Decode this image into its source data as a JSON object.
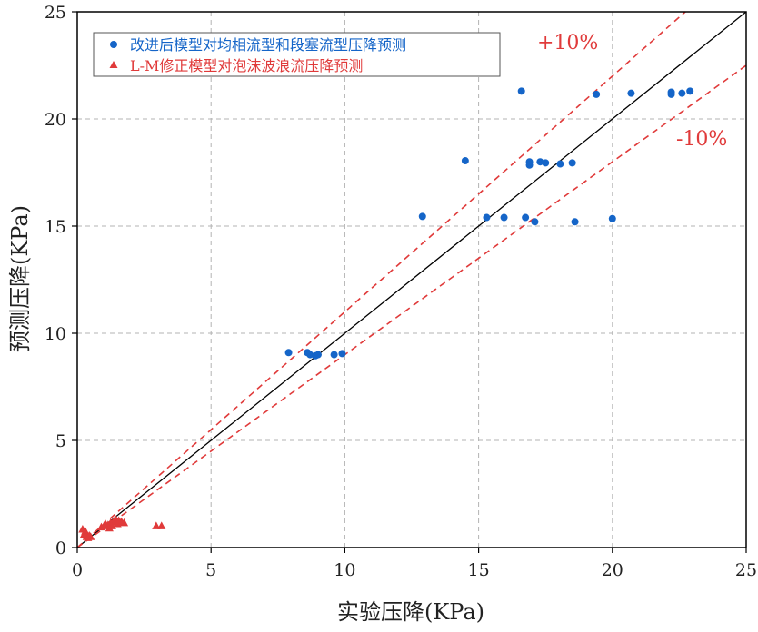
{
  "colors": {
    "blue": "#1565c8",
    "red": "#e03a3a",
    "axis": "#000000",
    "grid": "#b3b3b3"
  },
  "chart_data": {
    "type": "scatter",
    "title": "",
    "xlabel": "实验压降(KPa)",
    "ylabel": "预测压降(KPa)",
    "xlim": [
      0,
      25
    ],
    "ylim": [
      0,
      25
    ],
    "xticks": [
      "0",
      "5",
      "10",
      "15",
      "20",
      "25"
    ],
    "yticks": [
      "0",
      "5",
      "10",
      "15",
      "20",
      "25"
    ],
    "grid": true,
    "legend_position": "top-left",
    "series": [
      {
        "name": "改进后模型对均相流型和段塞流型压降预测",
        "marker": "circle",
        "color": "#1565c8",
        "points": [
          [
            7.9,
            9.1
          ],
          [
            8.6,
            9.1
          ],
          [
            8.7,
            9.0
          ],
          [
            8.9,
            8.95
          ],
          [
            9.0,
            9.0
          ],
          [
            9.6,
            9.0
          ],
          [
            9.9,
            9.05
          ],
          [
            12.9,
            15.45
          ],
          [
            14.5,
            18.05
          ],
          [
            15.3,
            15.4
          ],
          [
            15.95,
            15.4
          ],
          [
            16.6,
            21.3
          ],
          [
            16.75,
            15.4
          ],
          [
            16.9,
            18.0
          ],
          [
            16.9,
            17.85
          ],
          [
            17.1,
            15.2
          ],
          [
            17.3,
            18.0
          ],
          [
            17.5,
            17.95
          ],
          [
            18.05,
            17.9
          ],
          [
            18.5,
            17.95
          ],
          [
            18.6,
            15.2
          ],
          [
            19.4,
            21.15
          ],
          [
            20.0,
            15.35
          ],
          [
            20.7,
            21.2
          ],
          [
            22.2,
            21.25
          ],
          [
            22.2,
            21.15
          ],
          [
            22.6,
            21.2
          ],
          [
            22.9,
            21.3
          ]
        ]
      },
      {
        "name": "L-M修正模型对泡沫波浪流压降预测",
        "marker": "triangle",
        "color": "#e03a3a",
        "points": [
          [
            0.2,
            0.85
          ],
          [
            0.25,
            0.6
          ],
          [
            0.3,
            0.75
          ],
          [
            0.35,
            0.5
          ],
          [
            0.4,
            0.45
          ],
          [
            0.45,
            0.55
          ],
          [
            0.5,
            0.5
          ],
          [
            0.9,
            0.95
          ],
          [
            1.0,
            1.0
          ],
          [
            1.05,
            1.1
          ],
          [
            1.15,
            1.05
          ],
          [
            1.2,
            0.9
          ],
          [
            1.25,
            1.15
          ],
          [
            1.3,
            1.0
          ],
          [
            1.35,
            1.2
          ],
          [
            1.45,
            1.3
          ],
          [
            1.5,
            1.1
          ],
          [
            1.55,
            1.25
          ],
          [
            1.65,
            1.2
          ],
          [
            1.75,
            1.15
          ],
          [
            2.95,
            1.0
          ],
          [
            3.15,
            1.0
          ]
        ]
      }
    ],
    "reference_lines": [
      {
        "name": "y=x",
        "slope": 1.0,
        "style": "solid",
        "color": "#000000"
      },
      {
        "name": "+10%",
        "slope": 1.1,
        "style": "dashed",
        "color": "#e03a3a"
      },
      {
        "name": "-10%",
        "slope": 0.9,
        "style": "dashed",
        "color": "#e03a3a"
      }
    ],
    "annotations": [
      "+10%",
      "-10%"
    ]
  }
}
